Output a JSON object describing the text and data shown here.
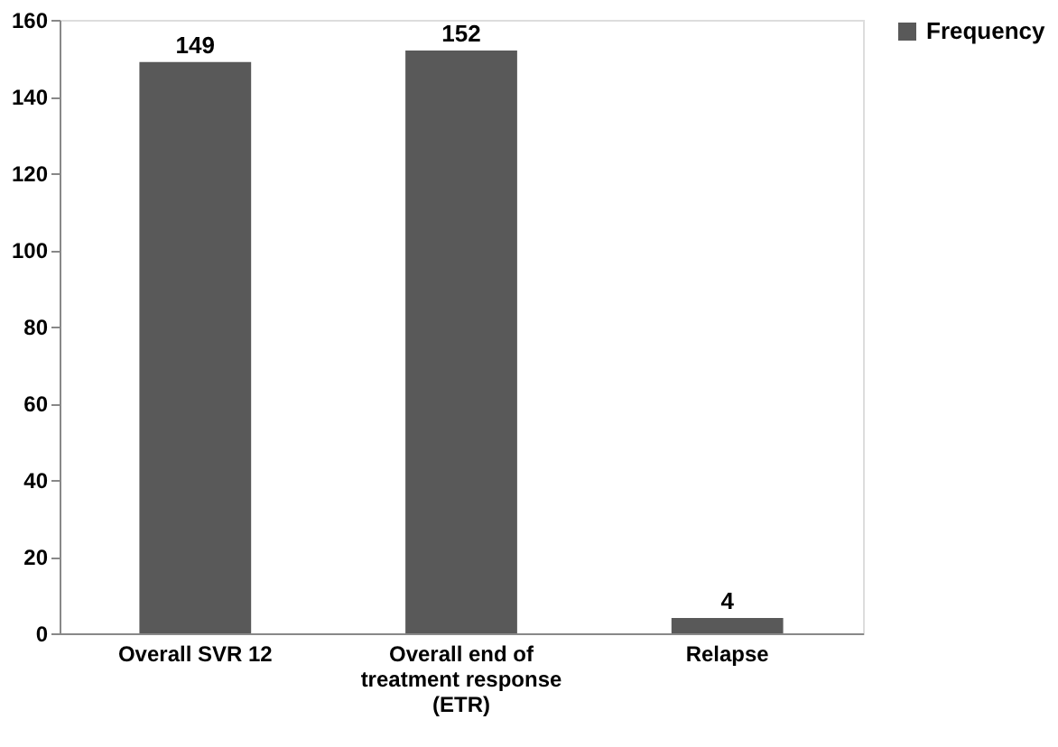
{
  "chart_data": {
    "type": "bar",
    "categories": [
      "Overall SVR 12",
      "Overall end of treatment response (ETR)",
      "Relapse"
    ],
    "series": [
      {
        "name": "Frequency",
        "color": "#595959",
        "values": [
          149,
          152,
          4
        ]
      }
    ],
    "ylim": [
      0,
      160
    ],
    "yticks": [
      0,
      20,
      40,
      60,
      80,
      100,
      120,
      140,
      160
    ],
    "data_labels": true,
    "legend": "right",
    "grid": false
  }
}
